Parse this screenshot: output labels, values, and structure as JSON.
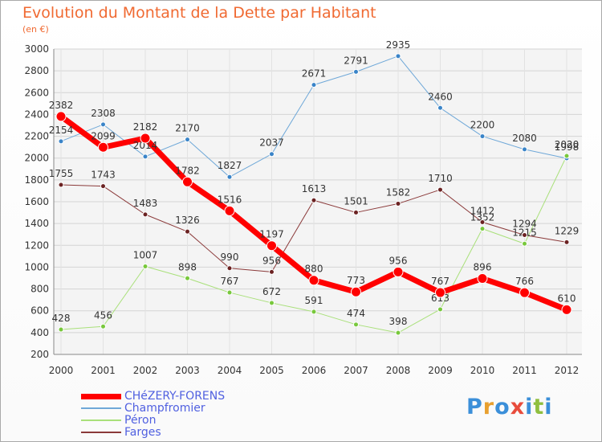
{
  "title": "Evolution du Montant de la Dette par Habitant",
  "unit": "(en €)",
  "logo": {
    "letters": [
      "P",
      "r",
      "o",
      "x",
      "i",
      "t",
      "i"
    ],
    "colors": [
      "#3b8fd9",
      "#e8a030",
      "#3b8fd9",
      "#e84c3c",
      "#3b8fd9",
      "#8fbf3f",
      "#3b8fd9"
    ]
  },
  "chart_data": {
    "type": "line",
    "x": [
      "2000",
      "2001",
      "2002",
      "2003",
      "2004",
      "2005",
      "2006",
      "2007",
      "2008",
      "2009",
      "2010",
      "2011",
      "2012"
    ],
    "ylim": [
      200,
      3000
    ],
    "yticks": [
      200,
      400,
      600,
      800,
      1000,
      1200,
      1400,
      1600,
      1800,
      2000,
      2200,
      2400,
      2600,
      2800,
      3000
    ],
    "grid": true,
    "legend": "bottom-left",
    "series": [
      {
        "name": "Champfromier",
        "color": "#6fa8d8",
        "point": "#3a84c8",
        "width": 1,
        "values": [
          2154,
          2308,
          2014,
          2170,
          1827,
          2037,
          2671,
          2791,
          2935,
          2460,
          2200,
          2080,
          1998
        ]
      },
      {
        "name": "Péron",
        "color": "#a9e07a",
        "point": "#78c83c",
        "width": 1,
        "values": [
          428,
          456,
          1007,
          898,
          767,
          672,
          591,
          474,
          398,
          613,
          1352,
          1215,
          2020
        ]
      },
      {
        "name": "Farges",
        "color": "#8b3a3a",
        "point": "#6b2222",
        "width": 1,
        "values": [
          1755,
          1743,
          1483,
          1326,
          990,
          956,
          1613,
          1501,
          1582,
          1710,
          1412,
          1294,
          1229
        ]
      },
      {
        "name": "CHéZERY-FORENS",
        "color": "#ff0000",
        "point": "#ff0000",
        "width": 7,
        "values": [
          2382,
          2099,
          2182,
          1782,
          1516,
          1197,
          880,
          773,
          956,
          767,
          896,
          766,
          610
        ]
      }
    ]
  }
}
